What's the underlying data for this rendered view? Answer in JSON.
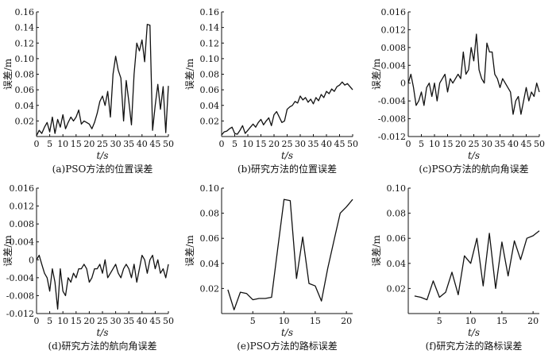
{
  "chart_data": [
    {
      "type": "line",
      "caption": "(a)PSO方法的位置误差",
      "xlabel": "t/s",
      "ylabel": "误差/m",
      "xlim": [
        0,
        50
      ],
      "ylim": [
        0,
        0.16
      ],
      "xticks": [
        0,
        5,
        10,
        15,
        20,
        25,
        30,
        35,
        40,
        45,
        50
      ],
      "xtick_labels": [
        "0",
        "5",
        "10",
        "15",
        "20",
        "25",
        "30",
        "35",
        "40",
        "45",
        "50"
      ],
      "yticks": [
        0.02,
        0.04,
        0.06,
        0.08,
        0.1,
        0.12,
        0.14,
        0.16
      ],
      "ytick_labels": [
        "0.02",
        "0.04",
        "0.06",
        "0.08",
        "0.10",
        "0.12",
        "0.14",
        "0.16"
      ],
      "x": [
        0,
        1,
        2,
        3,
        4,
        5,
        6,
        7,
        8,
        9,
        10,
        11,
        12,
        13,
        14,
        15,
        16,
        17,
        18,
        19,
        20,
        21,
        22,
        23,
        24,
        25,
        26,
        27,
        28,
        29,
        30,
        31,
        32,
        33,
        34,
        35,
        36,
        37,
        38,
        39,
        40,
        41,
        42,
        43,
        44,
        45,
        46,
        47,
        48,
        49,
        50
      ],
      "y": [
        0.001,
        0.008,
        0.004,
        0.012,
        0.018,
        0.006,
        0.025,
        0.004,
        0.022,
        0.012,
        0.028,
        0.01,
        0.018,
        0.025,
        0.02,
        0.025,
        0.034,
        0.016,
        0.02,
        0.018,
        0.016,
        0.01,
        0.018,
        0.03,
        0.045,
        0.052,
        0.04,
        0.058,
        0.025,
        0.08,
        0.103,
        0.085,
        0.075,
        0.02,
        0.072,
        0.045,
        0.015,
        0.08,
        0.12,
        0.11,
        0.124,
        0.096,
        0.144,
        0.143,
        0.008,
        0.04,
        0.067,
        0.035,
        0.064,
        0.005,
        0.065
      ]
    },
    {
      "type": "line",
      "caption": "(b)研究方法的位置误差",
      "xlabel": "t/s",
      "ylabel": "误差/m",
      "xlim": [
        0,
        50
      ],
      "ylim": [
        0,
        0.16
      ],
      "xticks": [
        0,
        5,
        10,
        15,
        20,
        25,
        30,
        35,
        40,
        45,
        50
      ],
      "xtick_labels": [
        "0",
        "5",
        "10",
        "15",
        "20",
        "25",
        "30",
        "35",
        "40",
        "45",
        "50"
      ],
      "yticks": [
        0.02,
        0.04,
        0.06,
        0.08,
        0.1,
        0.12,
        0.14,
        0.16
      ],
      "ytick_labels": [
        "0.02",
        "0.04",
        "0.06",
        "0.08",
        "0.10",
        "0.12",
        "0.14",
        "0.16"
      ],
      "x": [
        0,
        1,
        2,
        3,
        4,
        5,
        6,
        7,
        8,
        9,
        10,
        11,
        12,
        13,
        14,
        15,
        16,
        17,
        18,
        19,
        20,
        21,
        22,
        23,
        24,
        25,
        26,
        27,
        28,
        29,
        30,
        31,
        32,
        33,
        34,
        35,
        36,
        37,
        38,
        39,
        40,
        41,
        42,
        43,
        44,
        45,
        46,
        47,
        48,
        49,
        50
      ],
      "y": [
        0.002,
        0.006,
        0.007,
        0.01,
        0.012,
        0.004,
        0.003,
        0.008,
        0.014,
        0.004,
        0.008,
        0.012,
        0.016,
        0.012,
        0.018,
        0.022,
        0.015,
        0.02,
        0.024,
        0.014,
        0.028,
        0.032,
        0.025,
        0.018,
        0.02,
        0.035,
        0.038,
        0.04,
        0.045,
        0.043,
        0.052,
        0.047,
        0.05,
        0.044,
        0.048,
        0.042,
        0.05,
        0.046,
        0.054,
        0.05,
        0.058,
        0.055,
        0.061,
        0.058,
        0.064,
        0.066,
        0.07,
        0.066,
        0.068,
        0.064,
        0.06
      ]
    },
    {
      "type": "line",
      "caption": "(c)PSO方法的航向角误差",
      "xlabel": "t/s",
      "ylabel": "误差/m",
      "xlim": [
        0,
        50
      ],
      "ylim": [
        -0.012,
        0.016
      ],
      "xticks": [
        0,
        5,
        10,
        15,
        20,
        25,
        30,
        35,
        40,
        45,
        50
      ],
      "xtick_labels": [
        "0",
        "5",
        "10",
        "15",
        "20",
        "25",
        "30",
        "35",
        "40",
        "45",
        "50"
      ],
      "yticks": [
        -0.012,
        -0.008,
        -0.004,
        0,
        0.004,
        0.008,
        0.012,
        0.016
      ],
      "ytick_labels": [
        "-0.012",
        "-0.008",
        "-0.004",
        "0",
        "0.004",
        "0.008",
        "0.012",
        "0.016"
      ],
      "x": [
        0,
        1,
        2,
        3,
        4,
        5,
        6,
        7,
        8,
        9,
        10,
        11,
        12,
        13,
        14,
        15,
        16,
        17,
        18,
        19,
        20,
        21,
        22,
        23,
        24,
        25,
        26,
        27,
        28,
        29,
        30,
        31,
        32,
        33,
        34,
        35,
        36,
        37,
        38,
        39,
        40,
        41,
        42,
        43,
        44,
        45,
        46,
        47,
        48,
        49,
        50
      ],
      "y": [
        0.0,
        0.002,
        -0.001,
        -0.005,
        -0.004,
        -0.002,
        -0.005,
        -0.001,
        0.0,
        -0.003,
        0.0,
        -0.004,
        0.0,
        0.001,
        0.002,
        -0.002,
        0.001,
        0.0,
        0.001,
        0.002,
        0.001,
        0.007,
        0.002,
        0.003,
        0.008,
        0.005,
        0.011,
        0.003,
        0.001,
        0.0,
        0.009,
        0.007,
        0.007,
        0.002,
        0.001,
        -0.001,
        0.001,
        0.0,
        -0.001,
        -0.002,
        -0.007,
        -0.004,
        -0.003,
        -0.007,
        -0.004,
        -0.001,
        -0.004,
        -0.002,
        -0.003,
        0.0,
        -0.002
      ]
    },
    {
      "type": "line",
      "caption": "(d)研究方法的航向角误差",
      "xlabel": "t/s",
      "ylabel": "误差/m",
      "xlim": [
        0,
        50
      ],
      "ylim": [
        -0.012,
        0.016
      ],
      "xticks": [
        0,
        5,
        10,
        15,
        20,
        25,
        30,
        35,
        40,
        45,
        50
      ],
      "xtick_labels": [
        "0",
        "5",
        "10",
        "15",
        "20",
        "25",
        "30",
        "35",
        "40",
        "45",
        "50"
      ],
      "yticks": [
        -0.012,
        -0.008,
        -0.004,
        0,
        0.004,
        0.008,
        0.012,
        0.016
      ],
      "ytick_labels": [
        "-0.012",
        "-0.008",
        "-0.004",
        "0",
        "0.004",
        "0.008",
        "0.012",
        "0.016"
      ],
      "x": [
        0,
        1,
        2,
        3,
        4,
        5,
        6,
        7,
        8,
        9,
        10,
        11,
        12,
        13,
        14,
        15,
        16,
        17,
        18,
        19,
        20,
        21,
        22,
        23,
        24,
        25,
        26,
        27,
        28,
        29,
        30,
        31,
        32,
        33,
        34,
        35,
        36,
        37,
        38,
        39,
        40,
        41,
        42,
        43,
        44,
        45,
        46,
        47,
        48,
        49,
        50
      ],
      "y": [
        0.0,
        0.001,
        -0.001,
        -0.003,
        -0.004,
        -0.007,
        -0.002,
        -0.005,
        -0.011,
        -0.002,
        -0.007,
        -0.008,
        -0.004,
        -0.005,
        -0.003,
        -0.004,
        -0.002,
        -0.002,
        -0.001,
        -0.002,
        -0.005,
        -0.004,
        -0.002,
        -0.002,
        -0.001,
        -0.003,
        0.0,
        -0.004,
        -0.003,
        -0.002,
        -0.001,
        -0.003,
        -0.004,
        -0.002,
        -0.001,
        -0.002,
        -0.004,
        -0.001,
        -0.005,
        -0.002,
        0.001,
        0.0,
        -0.003,
        0.0,
        0.001,
        -0.002,
        0.0,
        -0.003,
        -0.002,
        -0.004,
        -0.001
      ]
    },
    {
      "type": "line",
      "caption": "(e)PSO方法的路标误差",
      "xlabel": "t/s",
      "ylabel": "误差/m",
      "xlim": [
        0,
        21
      ],
      "ylim": [
        0,
        0.1
      ],
      "xticks": [
        5,
        10,
        15,
        20
      ],
      "xtick_labels": [
        "5",
        "10",
        "15",
        "20"
      ],
      "yticks": [
        0.02,
        0.04,
        0.06,
        0.08,
        0.1
      ],
      "ytick_labels": [
        "0.02",
        "0.04",
        "0.06",
        "0.08",
        "0.10"
      ],
      "x": [
        1,
        2,
        3,
        4,
        5,
        6,
        7,
        8,
        9,
        10,
        11,
        12,
        13,
        14,
        15,
        16,
        17,
        18,
        19,
        20,
        21
      ],
      "y": [
        0.019,
        0.003,
        0.017,
        0.016,
        0.011,
        0.012,
        0.012,
        0.013,
        0.052,
        0.091,
        0.09,
        0.028,
        0.061,
        0.024,
        0.022,
        0.01,
        0.036,
        0.058,
        0.08,
        0.085,
        0.091
      ]
    },
    {
      "type": "line",
      "caption": "(f)研究方法的路标误差",
      "xlabel": "t/s",
      "ylabel": "误差/m",
      "xlim": [
        0,
        21
      ],
      "ylim": [
        0,
        0.1
      ],
      "xticks": [
        5,
        10,
        15,
        20
      ],
      "xtick_labels": [
        "5",
        "10",
        "15",
        "20"
      ],
      "yticks": [
        0.02,
        0.04,
        0.06,
        0.08,
        0.1
      ],
      "ytick_labels": [
        "0.02",
        "0.04",
        "0.06",
        "0.08",
        "0.10"
      ],
      "x": [
        1,
        2,
        3,
        4,
        5,
        6,
        7,
        8,
        9,
        10,
        11,
        12,
        13,
        14,
        15,
        16,
        17,
        18,
        19,
        20,
        21
      ],
      "y": [
        0.014,
        0.013,
        0.011,
        0.026,
        0.013,
        0.017,
        0.033,
        0.015,
        0.046,
        0.04,
        0.06,
        0.022,
        0.064,
        0.02,
        0.057,
        0.03,
        0.058,
        0.043,
        0.06,
        0.062,
        0.066
      ]
    }
  ]
}
